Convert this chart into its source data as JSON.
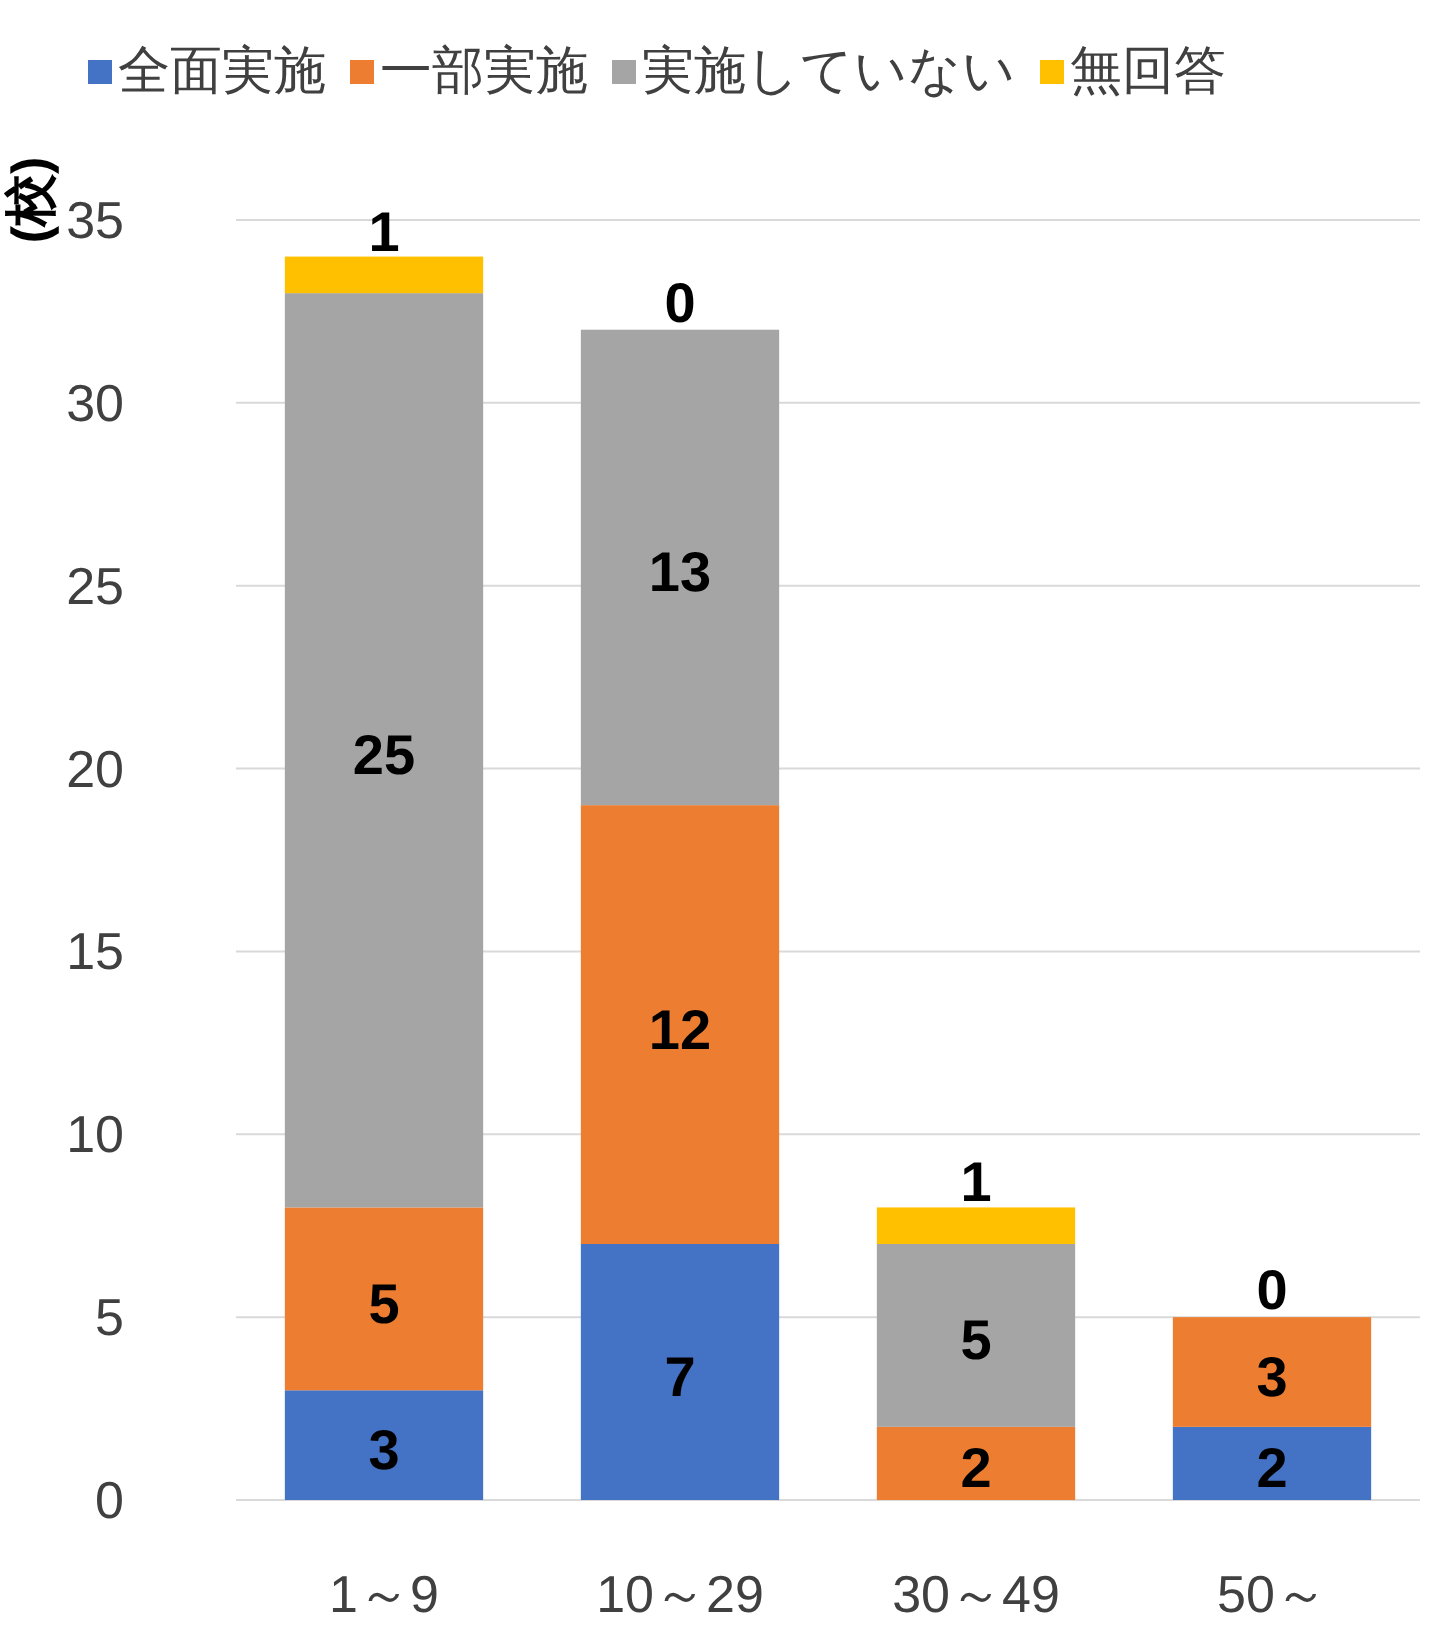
{
  "chart_data": {
    "type": "bar",
    "stacked": true,
    "ylabel": "(校)",
    "categories": [
      "1～9",
      "10～29",
      "30～49",
      "50～"
    ],
    "series": [
      {
        "name": "全面実施",
        "color": "#4472c4",
        "values": [
          3,
          7,
          0,
          2
        ],
        "value_labels": [
          "3",
          "7",
          null,
          "2"
        ]
      },
      {
        "name": "一部実施",
        "color": "#ed7d31",
        "values": [
          5,
          12,
          2,
          3
        ],
        "value_labels": [
          "5",
          "12",
          "2",
          "3"
        ]
      },
      {
        "name": "実施していない",
        "color": "#a5a5a5",
        "values": [
          25,
          13,
          5,
          0
        ],
        "value_labels": [
          "25",
          "13",
          "5",
          null
        ]
      },
      {
        "name": "無回答",
        "color": "#ffc000",
        "values": [
          1,
          0,
          1,
          0
        ],
        "value_labels": [
          "1",
          "0",
          "1",
          "0"
        ]
      }
    ],
    "ylim": [
      0,
      35
    ],
    "yticks": [
      0,
      5,
      10,
      15,
      20,
      25,
      30,
      35
    ],
    "grid": "y",
    "legend": "top",
    "data_labels": true
  }
}
